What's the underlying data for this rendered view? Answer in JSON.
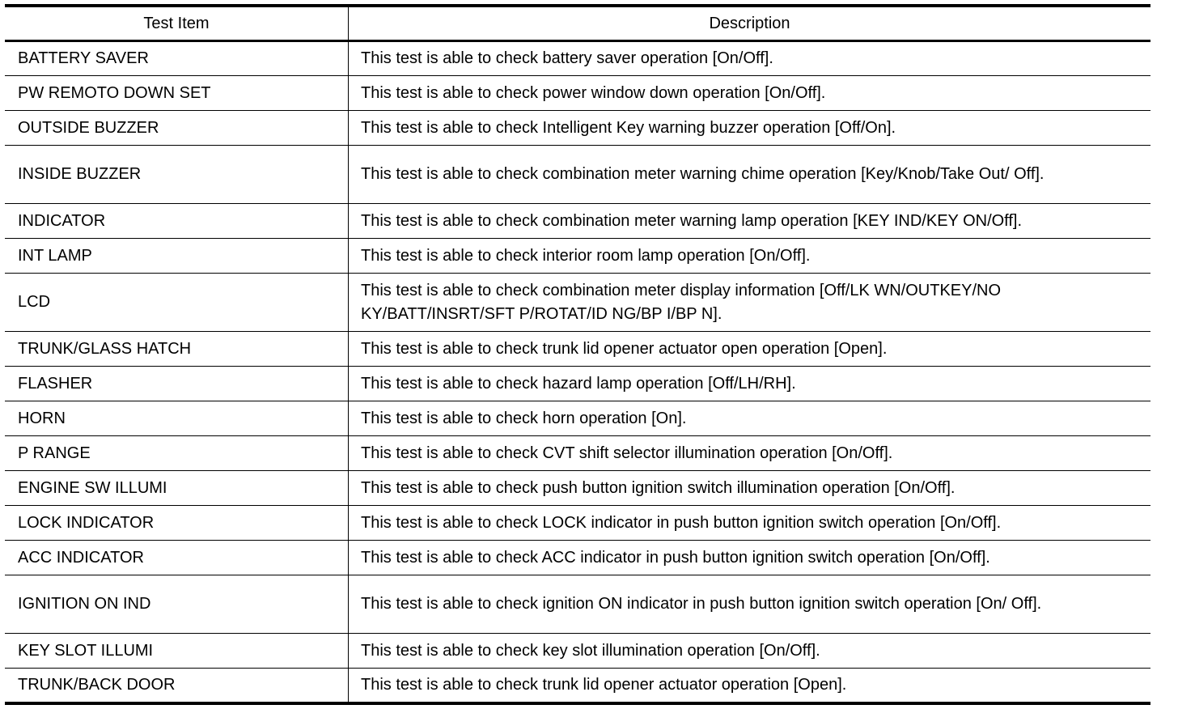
{
  "table": {
    "headers": [
      "Test Item",
      "Description"
    ],
    "rows": [
      {
        "item": "BATTERY SAVER",
        "desc": "This test is able to check battery saver operation [On/Off]."
      },
      {
        "item": "PW REMOTO DOWN SET",
        "desc": "This test is able to check power window down operation [On/Off]."
      },
      {
        "item": "OUTSIDE BUZZER",
        "desc": "This test is able to check Intelligent Key warning buzzer operation [Off/On]."
      },
      {
        "item": "INSIDE BUZZER",
        "desc": "This test is able to check combination meter warning chime operation [Key/Knob/Take Out/ Off]."
      },
      {
        "item": "INDICATOR",
        "desc": "This test is able to check combination meter warning lamp operation [KEY IND/KEY ON/Off]."
      },
      {
        "item": "INT LAMP",
        "desc": "This test is able to check interior room lamp operation [On/Off]."
      },
      {
        "item": "LCD",
        "desc": "This test is able to check combination meter display information [Off/LK WN/OUTKEY/NO KY/BATT/INSRT/SFT P/ROTAT/ID NG/BP I/BP N]."
      },
      {
        "item": "TRUNK/GLASS HATCH",
        "desc": "This test is able to check trunk lid opener actuator open operation [Open]."
      },
      {
        "item": "FLASHER",
        "desc": "This test is able to check hazard lamp operation [Off/LH/RH]."
      },
      {
        "item": "HORN",
        "desc": "This test is able to check horn operation [On]."
      },
      {
        "item": "P RANGE",
        "desc": "This test is able to check CVT shift selector illumination operation [On/Off]."
      },
      {
        "item": "ENGINE SW ILLUMI",
        "desc": "This test is able to check push button ignition switch illumination operation [On/Off]."
      },
      {
        "item": "LOCK INDICATOR",
        "desc": "This test is able to check LOCK indicator in push button ignition switch operation [On/Off]."
      },
      {
        "item": "ACC INDICATOR",
        "desc": "This test is able to check ACC indicator in push button ignition switch operation [On/Off]."
      },
      {
        "item": "IGNITION ON IND",
        "desc": "This test is able to check ignition ON indicator in push button ignition switch operation [On/ Off]."
      },
      {
        "item": "KEY SLOT ILLUMI",
        "desc": "This test is able to check key slot illumination operation [On/Off]."
      },
      {
        "item": "TRUNK/BACK DOOR",
        "desc": "This test is able to check trunk lid opener actuator operation [Open]."
      }
    ]
  }
}
